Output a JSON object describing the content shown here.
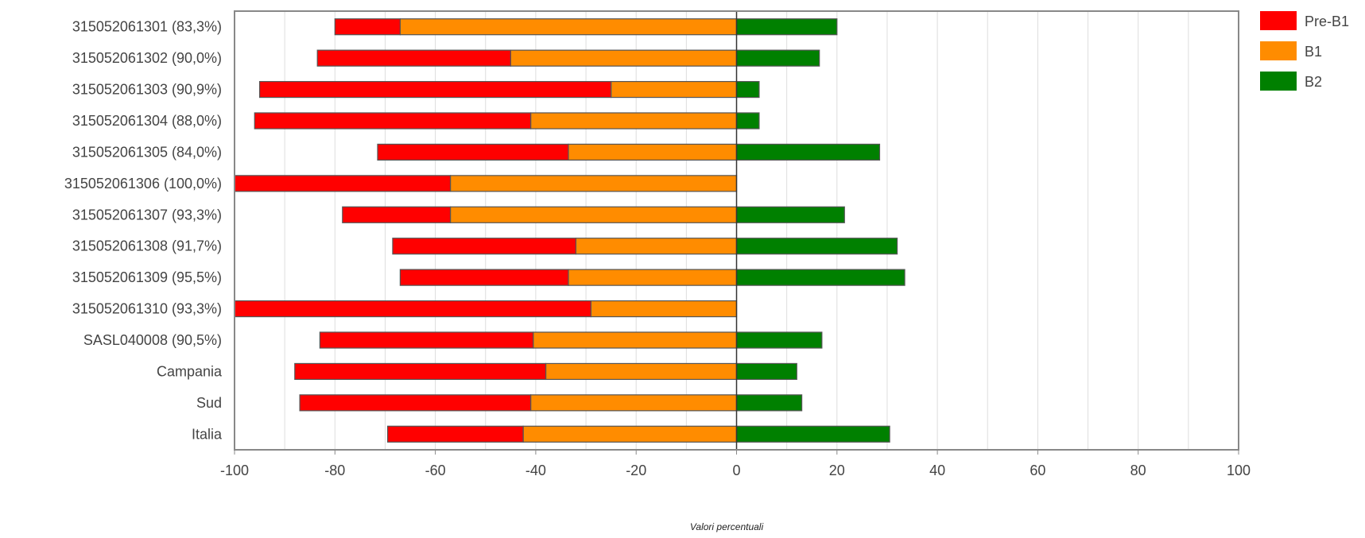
{
  "chart_data": {
    "type": "bar",
    "orientation": "horizontal",
    "stacking": "diverging",
    "categories": [
      "315052061301 (83,3%)",
      "315052061302 (90,0%)",
      "315052061303 (90,9%)",
      "315052061304 (88,0%)",
      "315052061305 (84,0%)",
      "315052061306 (100,0%)",
      "315052061307 (93,3%)",
      "315052061308 (91,7%)",
      "315052061309 (95,5%)",
      "315052061310 (93,3%)",
      "SASL040008 (90,5%)",
      "Campania",
      "Sud",
      "Italia"
    ],
    "series": [
      {
        "name": "Pre-B1",
        "color": "#ff0000",
        "side": "negative",
        "values": [
          13.0,
          38.5,
          70.0,
          55.0,
          38.0,
          43.0,
          21.5,
          36.5,
          33.5,
          71.0,
          42.5,
          50.0,
          46.0,
          27.0
        ]
      },
      {
        "name": "B1",
        "color": "#ff8c00",
        "side": "negative",
        "values": [
          67.0,
          45.0,
          25.0,
          41.0,
          33.5,
          57.0,
          57.0,
          32.0,
          33.5,
          29.0,
          40.5,
          38.0,
          41.0,
          42.5
        ]
      },
      {
        "name": "B2",
        "color": "#008000",
        "side": "positive",
        "values": [
          20.0,
          16.5,
          4.5,
          4.5,
          28.5,
          0.0,
          21.5,
          32.0,
          33.5,
          0.0,
          17.0,
          12.0,
          13.0,
          30.5
        ]
      }
    ],
    "xlim": [
      -100,
      100
    ],
    "xticks": [
      "-100",
      "-80",
      "-60",
      "-40",
      "-20",
      "0",
      "20",
      "40",
      "60",
      "80",
      "100"
    ],
    "xlabel": "Valori percentuali",
    "ylabel": "",
    "title": "",
    "grid": "vertical",
    "legend_position": "top-right"
  }
}
